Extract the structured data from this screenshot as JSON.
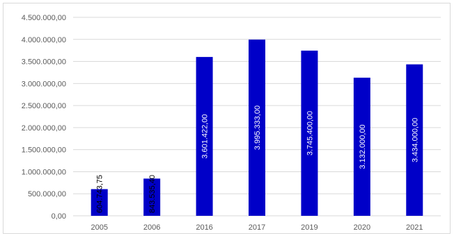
{
  "chart_data": {
    "type": "bar",
    "categories": [
      "2005",
      "2006",
      "2016",
      "2017",
      "2019",
      "2020",
      "2021"
    ],
    "values": [
      604743.75,
      843535.4,
      3601422.0,
      3995333.0,
      3745400.0,
      3132000.0,
      3434000.0
    ],
    "data_labels": [
      "604.743,75",
      "843.535,40",
      "3.601.422,00",
      "3.995.333,00",
      "3.745.400,00",
      "3.132.000,00",
      "3.434.000,00"
    ],
    "y_ticks": [
      "0,00",
      "500.000,00",
      "1.000.000,00",
      "1.500.000,00",
      "2.000.000,00",
      "2.500.000,00",
      "3.000.000,00",
      "3.500.000,00",
      "4.000.000,00",
      "4.500.000,00"
    ],
    "ylim": [
      0,
      4500000
    ],
    "grid": true,
    "legend": "none",
    "title": "",
    "xlabel": "",
    "ylabel": "",
    "colors": {
      "bar": "#0000c8",
      "grid": "#d9d9d9",
      "axis_text": "#595959",
      "label_text": "#ffffff",
      "label_text_outside": "#000000"
    }
  }
}
